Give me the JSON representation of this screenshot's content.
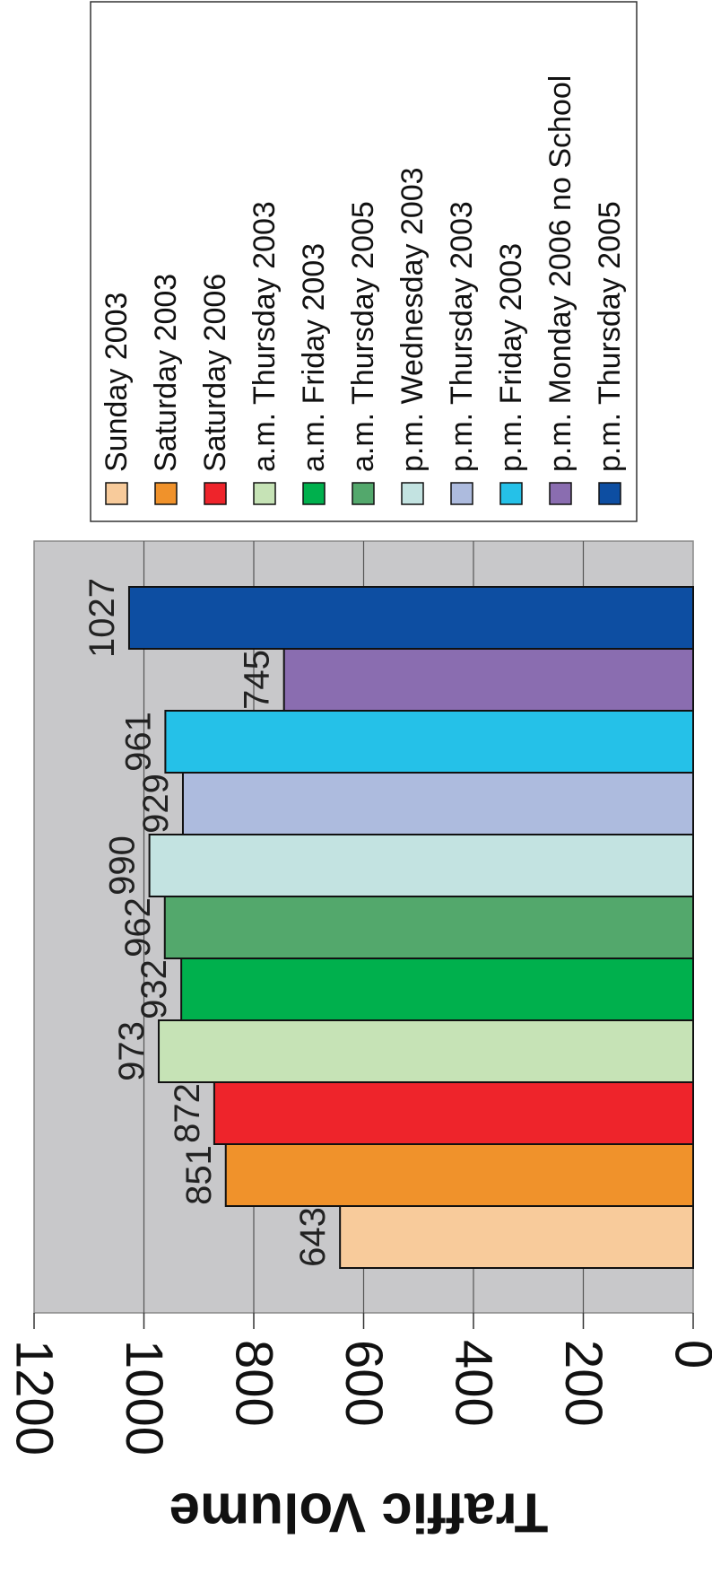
{
  "chart_data": {
    "type": "bar",
    "orientation": "rotated-90-clockwise",
    "ylabel": "Traffic Volume",
    "ylim": [
      0,
      1200
    ],
    "yticks": [
      "0",
      "200",
      "400",
      "600",
      "800",
      "1000",
      "1200"
    ],
    "grid": true,
    "legend_position": "top",
    "categories": [
      "Sunday 2003",
      "Saturday 2003",
      "Saturday 2006",
      "a.m.  Thursday 2003",
      "a.m. Friday 2003",
      "a.m.  Thursday  2005",
      "p.m.  Wednesday 2003",
      "p.m.  Thursday 2003",
      "p.m.  Friday 2003",
      "p.m.  Monday 2006 no School",
      "p.m.  Thursday  2005"
    ],
    "values": [
      643,
      851,
      872,
      973,
      932,
      962,
      990,
      929,
      961,
      745,
      1027
    ],
    "data_labels": [
      "643",
      "851",
      "872",
      "973",
      "932",
      "962",
      "990",
      "929",
      "961",
      "745",
      "1027"
    ],
    "colors": [
      "#F8CB9B",
      "#F0922B",
      "#EE242B",
      "#C6E3B6",
      "#00B04D",
      "#53A86C",
      "#C3E3E1",
      "#ADBBDE",
      "#25C1E8",
      "#8A6DB0",
      "#0D4EA2"
    ],
    "plot_background": "#C8C8CA"
  }
}
